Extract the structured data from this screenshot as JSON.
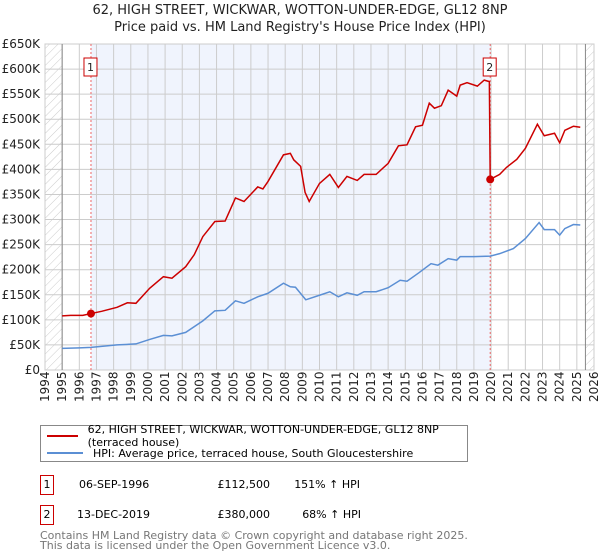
{
  "title": "62, HIGH STREET, WICKWAR, WOTTON-UNDER-EDGE, GL12 8NP",
  "subtitle": "Price paid vs. HM Land Registry's House Price Index (HPI)",
  "chart_data": {
    "type": "line",
    "xlim": [
      1994,
      2026
    ],
    "ylim": [
      0,
      650000
    ],
    "x_ticks": [
      "1994",
      "1995",
      "1996",
      "1997",
      "1998",
      "1999",
      "2000",
      "2001",
      "2002",
      "2003",
      "2004",
      "2005",
      "2006",
      "2007",
      "2008",
      "2009",
      "2010",
      "2011",
      "2012",
      "2013",
      "2014",
      "2015",
      "2016",
      "2017",
      "2018",
      "2019",
      "2020",
      "2021",
      "2022",
      "2023",
      "2024",
      "2025",
      "2026"
    ],
    "y_ticks": [
      {
        "v": 0,
        "label": "£0"
      },
      {
        "v": 50000,
        "label": "£50K"
      },
      {
        "v": 100000,
        "label": "£100K"
      },
      {
        "v": 150000,
        "label": "£150K"
      },
      {
        "v": 200000,
        "label": "£200K"
      },
      {
        "v": 250000,
        "label": "£250K"
      },
      {
        "v": 300000,
        "label": "£300K"
      },
      {
        "v": 350000,
        "label": "£350K"
      },
      {
        "v": 400000,
        "label": "£400K"
      },
      {
        "v": 450000,
        "label": "£450K"
      },
      {
        "v": 500000,
        "label": "£500K"
      },
      {
        "v": 550000,
        "label": "£550K"
      },
      {
        "v": 600000,
        "label": "£600K"
      },
      {
        "v": 650000,
        "label": "£650K"
      }
    ],
    "grid": true,
    "hatched_ranges": [
      [
        1994,
        1995
      ],
      [
        2025.5,
        2026
      ]
    ],
    "shaded_range": [
      1996.68,
      2019.95
    ],
    "series": [
      {
        "name": "62, HIGH STREET, WICKWAR, WOTTON-UNDER-EDGE, GL12 8NP (terraced house)",
        "color": "#cc0000",
        "x": [
          1995,
          1995.5,
          1996.2,
          1996.68,
          1997.3,
          1998.2,
          1998.8,
          1999.3,
          2000.1,
          2000.9,
          2001.4,
          2002.2,
          2002.7,
          2003.2,
          2003.9,
          2004.5,
          2005.1,
          2005.6,
          2006.4,
          2006.7,
          2007,
          2007.9,
          2008.3,
          2008.5,
          2008.9,
          2009.16,
          2009.4,
          2010,
          2010.6,
          2011.1,
          2011.6,
          2012.2,
          2012.6,
          2013.3,
          2014,
          2014.6,
          2015.1,
          2015.6,
          2016,
          2016.4,
          2016.7,
          2017.1,
          2017.5,
          2018,
          2018.2,
          2018.6,
          2019.2,
          2019.6,
          2019.9,
          2019.95,
          2020.5,
          2020.9,
          2021.5,
          2022,
          2022.7,
          2023.1,
          2023.7,
          2024,
          2024.3,
          2024.8,
          2025.2
        ],
        "y": [
          108000,
          109000,
          109000,
          112500,
          117000,
          125000,
          134000,
          133000,
          163000,
          186000,
          183000,
          206000,
          230000,
          266000,
          296000,
          297000,
          343000,
          336000,
          365000,
          361000,
          376000,
          429000,
          432000,
          419000,
          406000,
          354000,
          336000,
          372000,
          390000,
          364000,
          386000,
          378000,
          390000,
          390000,
          412000,
          447000,
          449000,
          485000,
          488000,
          532000,
          522000,
          527000,
          558000,
          546000,
          568000,
          573000,
          566000,
          578000,
          575000,
          380000,
          390000,
          404000,
          420000,
          442000,
          490000,
          467000,
          472000,
          453000,
          478000,
          486000,
          484000
        ]
      },
      {
        "name": "HPI: Average price, terraced house, South Gloucestershire",
        "color": "#5b8fd4",
        "x": [
          1995,
          1996,
          1996.68,
          1998.2,
          1999.3,
          2000.1,
          2000.9,
          2001.4,
          2002.2,
          2003.2,
          2003.9,
          2004.5,
          2005.1,
          2005.6,
          2006.4,
          2007,
          2007.9,
          2008.3,
          2008.6,
          2009.2,
          2010,
          2010.6,
          2011.1,
          2011.6,
          2012.2,
          2012.6,
          2013.3,
          2014,
          2014.7,
          2015.1,
          2015.8,
          2016.5,
          2016.9,
          2017.5,
          2018,
          2018.2,
          2019,
          2019.95,
          2020.5,
          2021.3,
          2022,
          2022.8,
          2023.1,
          2023.7,
          2024,
          2024.3,
          2024.8,
          2025.2
        ],
        "y": [
          43000,
          44000,
          45000,
          50000,
          52000,
          61000,
          69000,
          68000,
          75000,
          98000,
          118000,
          119000,
          138000,
          133000,
          146000,
          153000,
          173000,
          166000,
          165000,
          140000,
          149000,
          156000,
          146000,
          154000,
          149000,
          156000,
          156000,
          164000,
          179000,
          177000,
          194000,
          212000,
          209000,
          222000,
          219000,
          226000,
          226000,
          227000,
          232000,
          242000,
          262000,
          294000,
          280000,
          280000,
          269000,
          282000,
          290000,
          289000
        ]
      }
    ],
    "sales": [
      {
        "label": "1",
        "x": 1996.68,
        "y": 112500
      },
      {
        "label": "2",
        "x": 2019.95,
        "y": 380000
      }
    ]
  },
  "legend": {
    "red": "62, HIGH STREET, WICKWAR, WOTTON-UNDER-EDGE, GL12 8NP (terraced house)",
    "blue": "HPI: Average price, terraced house, South Gloucestershire"
  },
  "table": [
    {
      "num": "1",
      "date": "06-SEP-1996",
      "price": "£112,500",
      "hpi": "151% ↑ HPI"
    },
    {
      "num": "2",
      "date": "13-DEC-2019",
      "price": "£380,000",
      "hpi": "68% ↑ HPI"
    }
  ],
  "footer": {
    "line1": "Contains HM Land Registry data © Crown copyright and database right 2025.",
    "line2": "This data is licensed under the Open Government Licence v3.0."
  }
}
